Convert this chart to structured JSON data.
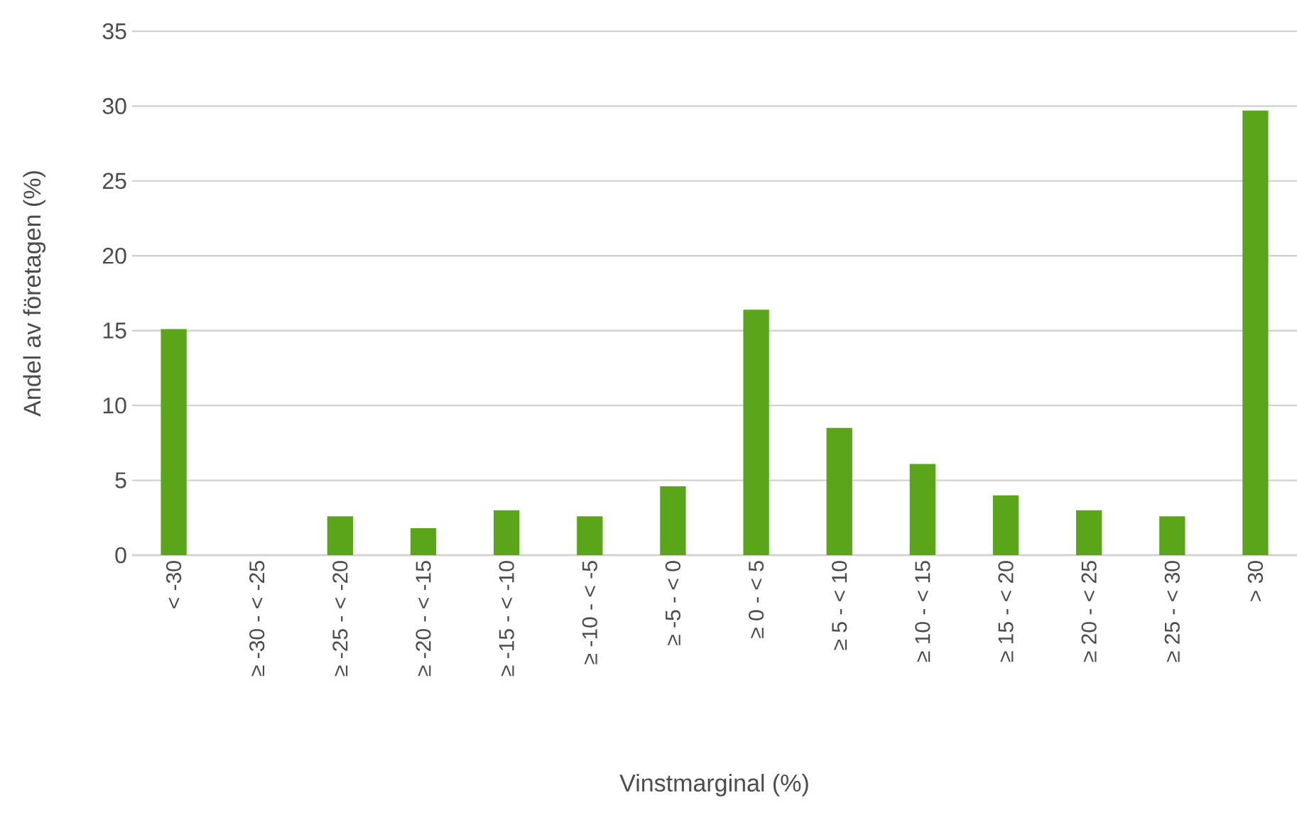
{
  "chart_data": {
    "type": "bar",
    "xlabel": "Vinstmarginal (%)",
    "ylabel": "Andel av företagen (%)",
    "categories": [
      "< -30",
      "≥ -30 - < -25",
      "≥ -25 - < -20",
      "≥ -20 - < -15",
      "≥ -15 - < -10",
      "≥ -10 - < -5",
      "≥ -5 - < 0",
      "≥ 0 - < 5",
      "≥ 5 - < 10",
      "≥ 10 - < 15",
      "≥ 15 - < 20",
      "≥ 20 - < 25",
      "≥ 25 - < 30",
      "> 30"
    ],
    "values": [
      15.1,
      0,
      2.6,
      1.8,
      3.0,
      2.6,
      4.6,
      16.4,
      8.5,
      6.1,
      4.0,
      3.0,
      2.6,
      29.7
    ],
    "color": "#5aa51a",
    "ylim": [
      0,
      35
    ],
    "yticks": [
      0,
      5,
      10,
      15,
      20,
      25,
      30,
      35
    ],
    "grid": "y"
  }
}
